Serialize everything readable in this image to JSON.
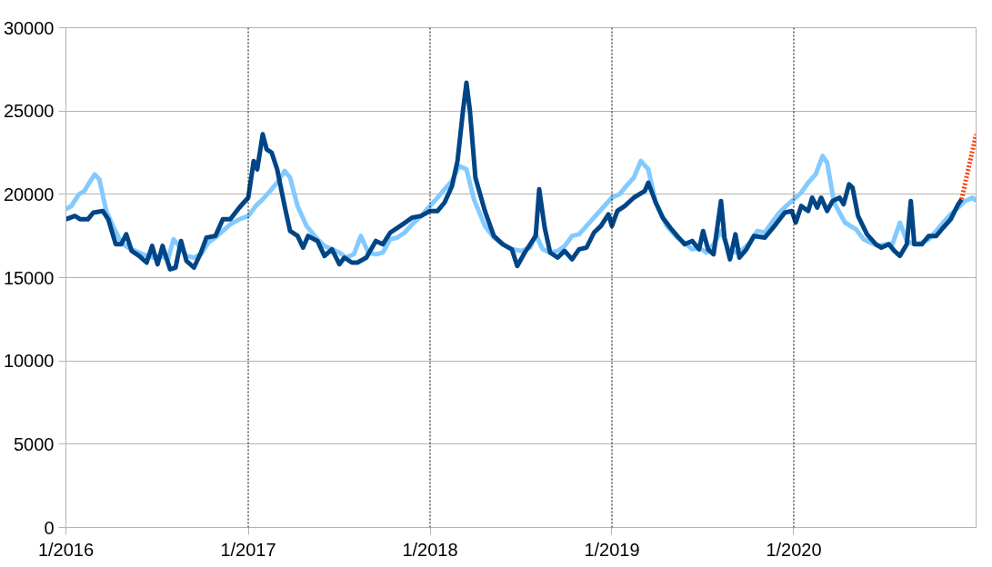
{
  "chart_data": {
    "type": "line",
    "xlim": [
      "2016-01-01",
      "2021-01-01"
    ],
    "xticks": [
      {
        "value": "2016-01-01",
        "label": "1/2016"
      },
      {
        "value": "2017-01-01",
        "label": "1/2017"
      },
      {
        "value": "2018-01-01",
        "label": "1/2018"
      },
      {
        "value": "2019-01-01",
        "label": "1/2019"
      },
      {
        "value": "2020-01-01",
        "label": "1/2020"
      }
    ],
    "ylim": [
      0,
      30000
    ],
    "yticks": [
      0,
      5000,
      10000,
      15000,
      20000,
      25000,
      30000
    ],
    "grid": "y",
    "line_style": "solid",
    "ref_lines": [
      {
        "axis": "x",
        "value": "2017-01-01",
        "line_style": "dotted",
        "color": "#000000"
      },
      {
        "axis": "x",
        "value": "2018-01-01",
        "line_style": "dotted",
        "color": "#000000"
      },
      {
        "axis": "x",
        "value": "2019-01-01",
        "line_style": "dotted",
        "color": "#000000"
      },
      {
        "axis": "x",
        "value": "2020-01-01",
        "line_style": "dotted",
        "color": "#000000"
      }
    ],
    "series": [
      {
        "color": "#83caff",
        "x": [
          "2016-01-01",
          "2016-01-12",
          "2016-01-27",
          "2016-02-07",
          "2016-02-17",
          "2016-02-28",
          "2016-03-08",
          "2016-03-22",
          "2016-04-06",
          "2016-04-21",
          "2016-05-05",
          "2016-05-20",
          "2016-06-03",
          "2016-06-14",
          "2016-06-25",
          "2016-07-10",
          "2016-07-24",
          "2016-08-04",
          "2016-08-15",
          "2016-08-30",
          "2016-09-14",
          "2016-09-28",
          "2016-10-13",
          "2016-10-27",
          "2016-11-11",
          "2016-11-26",
          "2016-12-14",
          "2017-01-01",
          "2017-01-16",
          "2017-01-30",
          "2017-02-14",
          "2017-02-28",
          "2017-03-15",
          "2017-03-26",
          "2017-04-10",
          "2017-04-28",
          "2017-05-20",
          "2017-06-03",
          "2017-06-18",
          "2017-07-03",
          "2017-07-17",
          "2017-08-01",
          "2017-08-15",
          "2017-08-30",
          "2017-09-14",
          "2017-09-28",
          "2017-10-13",
          "2017-10-27",
          "2017-11-11",
          "2017-11-26",
          "2017-12-14",
          "2018-01-01",
          "2018-01-16",
          "2018-01-30",
          "2018-02-14",
          "2018-02-28",
          "2018-03-15",
          "2018-03-30",
          "2018-04-21",
          "2018-05-09",
          "2018-05-27",
          "2018-06-14",
          "2018-07-03",
          "2018-07-21",
          "2018-08-01",
          "2018-08-15",
          "2018-08-30",
          "2018-09-14",
          "2018-09-28",
          "2018-10-13",
          "2018-10-27",
          "2018-11-11",
          "2018-11-26",
          "2018-12-14",
          "2019-01-01",
          "2019-01-16",
          "2019-01-30",
          "2019-02-14",
          "2019-02-28",
          "2019-03-15",
          "2019-03-30",
          "2019-04-21",
          "2019-05-12",
          "2019-05-27",
          "2019-06-11",
          "2019-06-25",
          "2019-07-10",
          "2019-07-24",
          "2019-08-08",
          "2019-08-23",
          "2019-09-06",
          "2019-09-21",
          "2019-10-05",
          "2019-10-20",
          "2019-11-04",
          "2019-11-18",
          "2019-12-03",
          "2019-12-17",
          "2020-01-01",
          "2020-01-16",
          "2020-01-30",
          "2020-02-14",
          "2020-02-28",
          "2020-03-08",
          "2020-03-22",
          "2020-04-13",
          "2020-05-05",
          "2020-05-20",
          "2020-06-03",
          "2020-06-18",
          "2020-07-03",
          "2020-07-17",
          "2020-08-01",
          "2020-08-15",
          "2020-08-30",
          "2020-09-14",
          "2020-09-28",
          "2020-10-13",
          "2020-10-27",
          "2020-11-11",
          "2020-11-26",
          "2020-12-10",
          "2020-12-25",
          "2021-01-01"
        ],
        "values": [
          19100,
          19300,
          20000,
          20200,
          20700,
          21200,
          20900,
          19000,
          18000,
          17100,
          16800,
          16600,
          16400,
          16300,
          16200,
          16300,
          16100,
          17300,
          16900,
          16300,
          16200,
          16400,
          17100,
          17400,
          17800,
          18200,
          18500,
          18700,
          19300,
          19700,
          20200,
          20700,
          21400,
          21000,
          19300,
          18100,
          17300,
          16900,
          16700,
          16500,
          16200,
          16400,
          17500,
          16500,
          16400,
          16500,
          17300,
          17400,
          17700,
          18200,
          18700,
          19300,
          19800,
          20300,
          20800,
          21700,
          21500,
          19700,
          18100,
          17400,
          17000,
          16700,
          16600,
          16800,
          17600,
          16700,
          16500,
          16600,
          16900,
          17500,
          17600,
          18100,
          18600,
          19200,
          19800,
          20000,
          20500,
          21000,
          22000,
          21500,
          19500,
          18100,
          17400,
          17100,
          16700,
          16800,
          16500,
          17000,
          17800,
          16700,
          16500,
          16700,
          17100,
          17800,
          17700,
          18300,
          18900,
          19300,
          19700,
          20100,
          20700,
          21200,
          22300,
          21900,
          19500,
          18300,
          17900,
          17300,
          17100,
          16900,
          17000,
          17000,
          18300,
          17200,
          17000,
          17100,
          17300,
          17800,
          18300,
          18800,
          19200,
          19600,
          19800,
          19600
        ]
      },
      {
        "color": "#004586",
        "x": [
          "2016-01-01",
          "2016-01-19",
          "2016-01-30",
          "2016-02-14",
          "2016-02-25",
          "2016-03-15",
          "2016-03-26",
          "2016-04-10",
          "2016-04-21",
          "2016-05-01",
          "2016-05-12",
          "2016-05-27",
          "2016-06-11",
          "2016-06-22",
          "2016-07-03",
          "2016-07-13",
          "2016-07-28",
          "2016-08-08",
          "2016-08-19",
          "2016-08-30",
          "2016-09-14",
          "2016-09-28",
          "2016-10-09",
          "2016-10-27",
          "2016-11-11",
          "2016-11-26",
          "2016-12-14",
          "2017-01-01",
          "2017-01-12",
          "2017-01-19",
          "2017-01-30",
          "2017-02-07",
          "2017-02-17",
          "2017-02-28",
          "2017-03-15",
          "2017-03-26",
          "2017-04-10",
          "2017-04-21",
          "2017-05-01",
          "2017-05-20",
          "2017-06-03",
          "2017-06-18",
          "2017-07-03",
          "2017-07-13",
          "2017-07-28",
          "2017-08-08",
          "2017-08-26",
          "2017-09-14",
          "2017-09-28",
          "2017-10-13",
          "2017-11-07",
          "2017-11-26",
          "2017-12-14",
          "2018-01-01",
          "2018-01-16",
          "2018-01-30",
          "2018-02-14",
          "2018-02-25",
          "2018-03-08",
          "2018-03-15",
          "2018-03-22",
          "2018-04-02",
          "2018-04-21",
          "2018-05-09",
          "2018-05-27",
          "2018-06-14",
          "2018-06-25",
          "2018-07-10",
          "2018-07-21",
          "2018-08-01",
          "2018-08-08",
          "2018-08-19",
          "2018-08-30",
          "2018-09-14",
          "2018-09-28",
          "2018-10-13",
          "2018-10-27",
          "2018-11-11",
          "2018-11-26",
          "2018-12-10",
          "2018-12-25",
          "2019-01-01",
          "2019-01-12",
          "2019-01-27",
          "2019-02-14",
          "2019-03-08",
          "2019-03-15",
          "2019-03-30",
          "2019-04-13",
          "2019-04-28",
          "2019-05-12",
          "2019-05-27",
          "2019-06-11",
          "2019-06-25",
          "2019-07-03",
          "2019-07-13",
          "2019-07-24",
          "2019-08-08",
          "2019-08-15",
          "2019-08-26",
          "2019-09-06",
          "2019-09-14",
          "2019-09-28",
          "2019-10-13",
          "2019-11-04",
          "2019-11-26",
          "2019-12-14",
          "2019-12-28",
          "2020-01-05",
          "2020-01-16",
          "2020-01-30",
          "2020-02-07",
          "2020-02-17",
          "2020-02-25",
          "2020-03-08",
          "2020-03-19",
          "2020-04-02",
          "2020-04-10",
          "2020-04-21",
          "2020-04-28",
          "2020-05-09",
          "2020-05-27",
          "2020-06-14",
          "2020-06-25",
          "2020-07-10",
          "2020-07-21",
          "2020-08-01",
          "2020-08-15",
          "2020-08-23",
          "2020-08-30",
          "2020-09-14",
          "2020-09-28",
          "2020-10-13",
          "2020-10-27",
          "2020-11-11",
          "2020-11-26",
          "2020-12-03"
        ],
        "values": [
          18500,
          18700,
          18500,
          18500,
          18900,
          19000,
          18500,
          17000,
          17000,
          17600,
          16600,
          16300,
          15900,
          16900,
          15800,
          16900,
          15500,
          15600,
          17200,
          16000,
          15600,
          16500,
          17400,
          17500,
          18500,
          18500,
          19200,
          19800,
          22000,
          21500,
          23600,
          22700,
          22500,
          21500,
          19300,
          17800,
          17500,
          16800,
          17500,
          17200,
          16300,
          16700,
          15800,
          16200,
          15900,
          15900,
          16200,
          17200,
          17000,
          17700,
          18200,
          18600,
          18700,
          19000,
          19000,
          19500,
          20500,
          22000,
          25000,
          26700,
          25000,
          21000,
          19000,
          17500,
          17000,
          16700,
          15700,
          16500,
          17000,
          17500,
          20300,
          18000,
          16500,
          16200,
          16600,
          16100,
          16700,
          16800,
          17700,
          18100,
          18800,
          18100,
          19000,
          19300,
          19800,
          20200,
          20700,
          19500,
          18600,
          18000,
          17500,
          17000,
          17200,
          16700,
          17800,
          16700,
          16400,
          19600,
          17400,
          16100,
          17600,
          16200,
          16700,
          17500,
          17400,
          18200,
          18900,
          19000,
          18300,
          19300,
          19000,
          19800,
          19200,
          19800,
          19000,
          19600,
          19800,
          19400,
          20600,
          20400,
          18700,
          17600,
          17000,
          16800,
          17000,
          16600,
          16300,
          17000,
          19600,
          17000,
          17000,
          17500,
          17500,
          18000,
          18500,
          19400,
          19700
        ]
      },
      {
        "color": "#ff420e",
        "line_style": "dotted",
        "x": [
          "2020-12-03",
          "2020-12-17",
          "2021-01-01"
        ],
        "values": [
          19700,
          21600,
          23600
        ]
      }
    ]
  }
}
